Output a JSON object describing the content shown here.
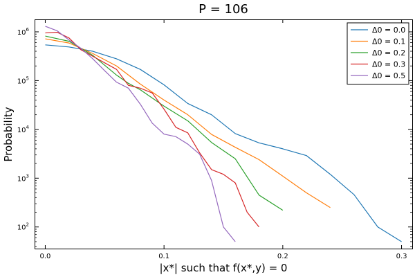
{
  "chart_data": {
    "type": "line",
    "title": "P = 106",
    "xlabel": "|x*| such that f(x*,y) = 0",
    "ylabel": "Probability",
    "xlim": [
      -0.009,
      0.309
    ],
    "ylim": [
      36,
      1800000
    ],
    "yscale": "log",
    "grid": false,
    "legend_position": "top-right",
    "x_ticks": [
      0.0,
      0.1,
      0.2,
      0.3
    ],
    "x_tick_labels": [
      "0.0",
      "0.1",
      "0.2",
      "0.3"
    ],
    "y_ticks": [
      100,
      1000,
      10000,
      100000,
      1000000
    ],
    "y_tick_labels": [
      "10",
      "10",
      "10",
      "10",
      "10"
    ],
    "y_tick_exponents": [
      "2",
      "3",
      "4",
      "5",
      "6"
    ],
    "series": [
      {
        "name": "Δ0 = 0.0",
        "color": "#1f77b4",
        "x": [
          0.0,
          0.02,
          0.04,
          0.06,
          0.08,
          0.1,
          0.12,
          0.14,
          0.16,
          0.18,
          0.2,
          0.22,
          0.24,
          0.26,
          0.28,
          0.3
        ],
        "y": [
          540000,
          490000,
          400000,
          280000,
          170000,
          82000,
          34000,
          20000,
          8200,
          5300,
          4000,
          2900,
          1200,
          460,
          100,
          50
        ]
      },
      {
        "name": "Δ0 = 0.1",
        "color": "#ff7f0e",
        "x": [
          0.0,
          0.02,
          0.04,
          0.06,
          0.08,
          0.1,
          0.12,
          0.14,
          0.16,
          0.18,
          0.2,
          0.22,
          0.24
        ],
        "y": [
          720000,
          590000,
          360000,
          200000,
          85000,
          40000,
          20000,
          7900,
          4300,
          2400,
          1100,
          500,
          250
        ]
      },
      {
        "name": "Δ0 = 0.2",
        "color": "#2ca02c",
        "x": [
          0.0,
          0.02,
          0.04,
          0.06,
          0.07,
          0.08,
          0.1,
          0.12,
          0.14,
          0.16,
          0.18,
          0.2
        ],
        "y": [
          820000,
          640000,
          330000,
          130000,
          88000,
          65000,
          30000,
          15000,
          5400,
          2500,
          450,
          220
        ]
      },
      {
        "name": "Δ0 = 0.3",
        "color": "#d62728",
        "x": [
          0.0,
          0.01,
          0.02,
          0.03,
          0.06,
          0.07,
          0.08,
          0.09,
          0.1,
          0.11,
          0.12,
          0.13,
          0.14,
          0.15,
          0.16,
          0.17,
          0.18
        ],
        "y": [
          950000,
          980000,
          750000,
          430000,
          170000,
          80000,
          70000,
          56000,
          26000,
          11000,
          8500,
          3300,
          1500,
          1200,
          800,
          200,
          100
        ]
      },
      {
        "name": "Δ0 = 0.5",
        "color": "#9467bd",
        "x": [
          0.0,
          0.01,
          0.02,
          0.03,
          0.04,
          0.05,
          0.06,
          0.07,
          0.08,
          0.09,
          0.1,
          0.11,
          0.12,
          0.13,
          0.14,
          0.15,
          0.16
        ],
        "y": [
          1300000,
          1050000,
          680000,
          460000,
          280000,
          160000,
          93000,
          70000,
          33000,
          13500,
          8000,
          7100,
          5000,
          3100,
          900,
          100,
          50
        ]
      }
    ]
  }
}
